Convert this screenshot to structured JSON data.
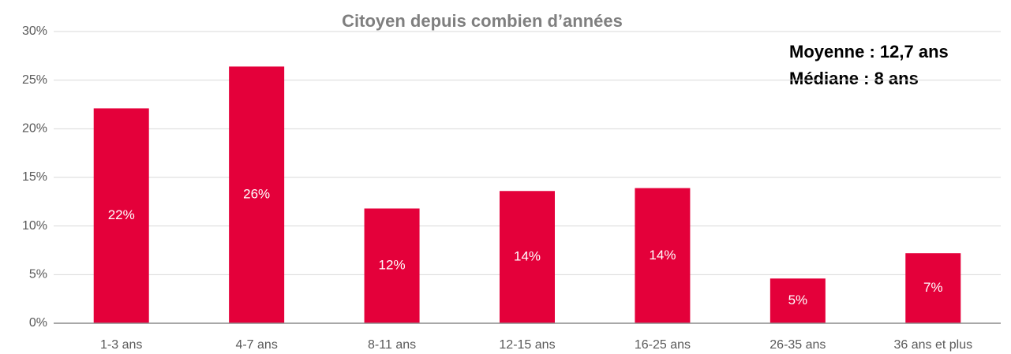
{
  "chart_data": {
    "type": "bar",
    "title": "Citoyen depuis combien d’années",
    "annotations": [
      "Moyenne : 12,7 ans",
      "Médiane : 8 ans"
    ],
    "categories": [
      "1-3 ans",
      "4-7 ans",
      "8-11 ans",
      "12-15 ans",
      "16-25 ans",
      "26-35 ans",
      "36 ans et plus"
    ],
    "values": [
      22.1,
      26.4,
      11.8,
      13.6,
      13.9,
      4.6,
      7.2
    ],
    "value_labels": [
      "22%",
      "26%",
      "12%",
      "14%",
      "14%",
      "5%",
      "7%"
    ],
    "color": "#e4003a",
    "ylim": [
      0,
      30
    ],
    "yticks": [
      {
        "value": 0,
        "label": "0%"
      },
      {
        "value": 5,
        "label": "5%"
      },
      {
        "value": 10,
        "label": "10%"
      },
      {
        "value": 15,
        "label": "15%"
      },
      {
        "value": 20,
        "label": "20%"
      },
      {
        "value": 25,
        "label": "25%"
      },
      {
        "value": 30,
        "label": "30%"
      }
    ],
    "grid": true
  }
}
